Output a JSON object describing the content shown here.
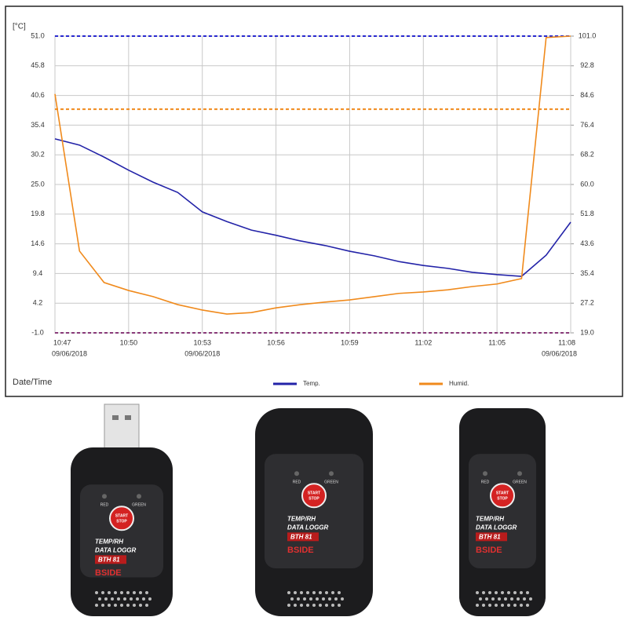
{
  "chart_data": {
    "type": "line",
    "y_unit_label": "[°C]",
    "x_label": "Date/Time",
    "x": [
      "10:47",
      "10:48",
      "10:49",
      "10:50",
      "10:51",
      "10:52",
      "10:53",
      "10:54",
      "10:55",
      "10:56",
      "10:57",
      "10:58",
      "10:59",
      "11:00",
      "11:01",
      "11:02",
      "11:03",
      "11:04",
      "11:05",
      "11:06",
      "11:07",
      "11:08"
    ],
    "xticks": [
      "10:47",
      "10:50",
      "10:53",
      "10:56",
      "10:59",
      "11:02",
      "11:05",
      "11:08"
    ],
    "xtick_dates": [
      "09/06/2018",
      null,
      "09/06/2018",
      null,
      null,
      null,
      null,
      "09/06/2018"
    ],
    "ylim": [
      -1.0,
      51.0
    ],
    "yticks": [
      {
        "value": -1.0,
        "label": "-1.0"
      },
      4.2,
      9.4,
      14.6,
      19.8,
      {
        "value": 25.0,
        "label": "25.0"
      },
      30.2,
      35.4,
      40.6,
      45.8,
      {
        "value": 51.0,
        "label": "51.0"
      }
    ],
    "y2lim": [
      19.0,
      101.0
    ],
    "y2ticks": [
      {
        "value": 19.0,
        "label": "19.0"
      },
      27.2,
      35.4,
      43.6,
      51.8,
      {
        "value": 60.0,
        "label": "60.0"
      },
      68.2,
      76.4,
      84.6,
      92.8,
      {
        "value": 101.0,
        "label": "101.0"
      }
    ],
    "grid": true,
    "alarm_lines": [
      {
        "axis": "y",
        "value": 51.0,
        "color": "#2a2ad0"
      },
      {
        "axis": "y",
        "value": -1.0,
        "color": "#8a3a7a"
      },
      {
        "axis": "y2",
        "value": 80.8,
        "color": "#f08a1c"
      }
    ],
    "series": [
      {
        "name": "Temp.",
        "color": "#2323a8",
        "axis": "y",
        "values": [
          33.0,
          31.9,
          29.8,
          27.5,
          25.4,
          23.6,
          20.2,
          18.5,
          17.0,
          16.1,
          15.1,
          14.3,
          13.3,
          12.5,
          11.5,
          10.8,
          10.3,
          9.6,
          9.2,
          8.9,
          12.6,
          18.4
        ]
      },
      {
        "name": "Humid.",
        "color": "#f08a1c",
        "axis": "y2",
        "values": [
          85.0,
          41.6,
          32.9,
          30.7,
          29.0,
          26.8,
          25.3,
          24.2,
          24.6,
          25.9,
          26.8,
          27.5,
          28.1,
          29.0,
          29.9,
          30.3,
          30.9,
          31.8,
          32.5,
          34.0,
          100.6,
          101.0
        ]
      }
    ]
  },
  "device": {
    "red": "RED",
    "green": "GREEN",
    "start": "START",
    "stop": "STOP",
    "line1": "TEMP/RH",
    "line2": "DATA LOGGR",
    "model": "BTH 81",
    "brand": "BSIDE"
  }
}
